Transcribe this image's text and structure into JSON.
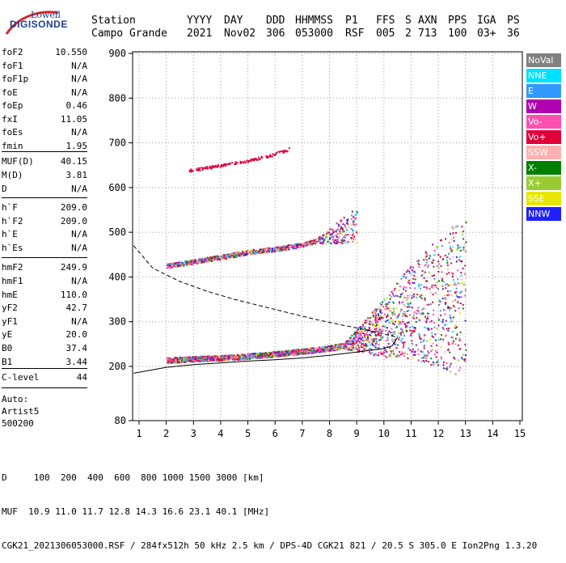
{
  "logo": {
    "top": "Lowell",
    "bottom": "DIGISONDE"
  },
  "header": {
    "labels": [
      "Station",
      "YYYY",
      "DAY",
      "DDD",
      "HHMMSS",
      "P1",
      "FFS",
      "S",
      "AXN",
      "PPS",
      "IGA",
      "PS"
    ],
    "values": [
      "Campo Grande",
      "2021",
      "Nov02",
      "306",
      "053000",
      "RSF",
      "005",
      "2",
      "713",
      "100",
      "03+",
      "36"
    ]
  },
  "params": [
    {
      "label": "foF2",
      "value": "10.550"
    },
    {
      "label": "foF1",
      "value": "N/A"
    },
    {
      "label": "foF1p",
      "value": "N/A"
    },
    {
      "label": "foE",
      "value": "N/A"
    },
    {
      "label": "foEp",
      "value": "0.46"
    },
    {
      "label": "fxI",
      "value": "11.05"
    },
    {
      "label": "foEs",
      "value": "N/A"
    },
    {
      "label": "fmin",
      "value": "1.95"
    },
    {
      "label": "MUF(D)",
      "value": "40.15"
    },
    {
      "label": "M(D)",
      "value": "3.81"
    },
    {
      "label": "D",
      "value": "N/A"
    },
    {
      "label": "h`F",
      "value": "209.0"
    },
    {
      "label": "h`F2",
      "value": "209.0"
    },
    {
      "label": "h`E",
      "value": "N/A"
    },
    {
      "label": "h`Es",
      "value": "N/A"
    },
    {
      "label": "hmF2",
      "value": "249.9"
    },
    {
      "label": "hmF1",
      "value": "N/A"
    },
    {
      "label": "hmE",
      "value": "110.0"
    },
    {
      "label": "yF2",
      "value": "42.7"
    },
    {
      "label": "yF1",
      "value": "N/A"
    },
    {
      "label": "yE",
      "value": "20.0"
    },
    {
      "label": "B0",
      "value": "37.4"
    },
    {
      "label": "B1",
      "value": "3.44"
    },
    {
      "label": "C-level",
      "value": "44"
    }
  ],
  "auto": {
    "line1": "Auto:",
    "line2": "Artist5",
    "line3": "500200"
  },
  "legend": [
    {
      "label": "NoVal",
      "color": "#808080"
    },
    {
      "label": "NNE",
      "color": "#00e0ff"
    },
    {
      "label": "E",
      "color": "#3399ff"
    },
    {
      "label": "W",
      "color": "#b000b0"
    },
    {
      "label": "Vo-",
      "color": "#ff4fb0"
    },
    {
      "label": "Vo+",
      "color": "#e0003c"
    },
    {
      "label": "SSW",
      "color": "#ffb0b0"
    },
    {
      "label": "X-",
      "color": "#008000"
    },
    {
      "label": "X+",
      "color": "#99cc33"
    },
    {
      "label": "SSE",
      "color": "#e6e600"
    },
    {
      "label": "NNW",
      "color": "#2020ff"
    }
  ],
  "footer": {
    "line1": "D     100  200  400  600  800 1000 1500 3000 [km]",
    "line2": "MUF  10.9 11.0 11.7 12.8 14.3 16.6 23.1 40.1 [MHz]",
    "line3": "CGK21_2021306053000.RSF / 284fx512h 50 kHz 2.5 km / DPS-4D CGK21 821 / 20.5 S 305.0 E Ion2Png 1.3.20"
  },
  "chart_data": {
    "type": "scatter",
    "title": "",
    "xlabel": "",
    "ylabel": "",
    "xlim": [
      0.8,
      15.1
    ],
    "ylim": [
      80,
      900
    ],
    "xticks": [
      "1",
      "2",
      "3",
      "4",
      "5",
      "6",
      "7",
      "8",
      "9",
      "10",
      "11",
      "12",
      "13",
      "14",
      "15"
    ],
    "yticks": [
      "80",
      "200",
      "300",
      "400",
      "500",
      "600",
      "700",
      "800",
      "900"
    ],
    "grid": true,
    "legend_position": "right",
    "series": [
      {
        "name": "Vo+",
        "kind": "trace",
        "points": [
          [
            2.0,
            213
          ],
          [
            3.0,
            216
          ],
          [
            4.0,
            218
          ],
          [
            5.0,
            222
          ],
          [
            6.0,
            227
          ],
          [
            7.0,
            233
          ],
          [
            8.0,
            240
          ],
          [
            9.0,
            252
          ],
          [
            10.0,
            268
          ],
          [
            10.5,
            282
          ],
          [
            11.0,
            290
          ],
          [
            12.0,
            300
          ],
          [
            13.0,
            306
          ]
        ]
      },
      {
        "name": "Vo+",
        "kind": "trace-2",
        "points": [
          [
            2.0,
            424
          ],
          [
            3.0,
            434
          ],
          [
            4.0,
            444
          ],
          [
            5.0,
            455
          ],
          [
            6.0,
            462
          ],
          [
            7.0,
            472
          ],
          [
            8.0,
            488
          ],
          [
            9.0,
            505
          ]
        ]
      },
      {
        "name": "Vo+",
        "kind": "trace-3",
        "points": [
          [
            2.8,
            638
          ],
          [
            3.5,
            645
          ],
          [
            4.5,
            655
          ],
          [
            5.0,
            660
          ],
          [
            5.8,
            672
          ],
          [
            6.5,
            686
          ]
        ]
      },
      {
        "name": "real-height-profile",
        "kind": "solid",
        "points": [
          [
            0.8,
            185
          ],
          [
            2.0,
            198
          ],
          [
            3.0,
            204
          ],
          [
            4.0,
            208
          ],
          [
            5.0,
            212
          ],
          [
            6.0,
            215
          ],
          [
            7.0,
            219
          ],
          [
            8.0,
            225
          ],
          [
            9.0,
            232
          ],
          [
            10.0,
            240
          ],
          [
            10.3,
            246
          ],
          [
            10.5,
            265
          ]
        ]
      },
      {
        "name": "muf-curve",
        "kind": "dashed",
        "points": [
          [
            0.8,
            470
          ],
          [
            1.5,
            420
          ],
          [
            2.5,
            390
          ],
          [
            3.5,
            368
          ],
          [
            4.5,
            350
          ],
          [
            5.5,
            335
          ],
          [
            6.5,
            320
          ],
          [
            7.5,
            305
          ],
          [
            8.5,
            292
          ],
          [
            9.5,
            280
          ],
          [
            10.5,
            265
          ]
        ]
      }
    ]
  }
}
